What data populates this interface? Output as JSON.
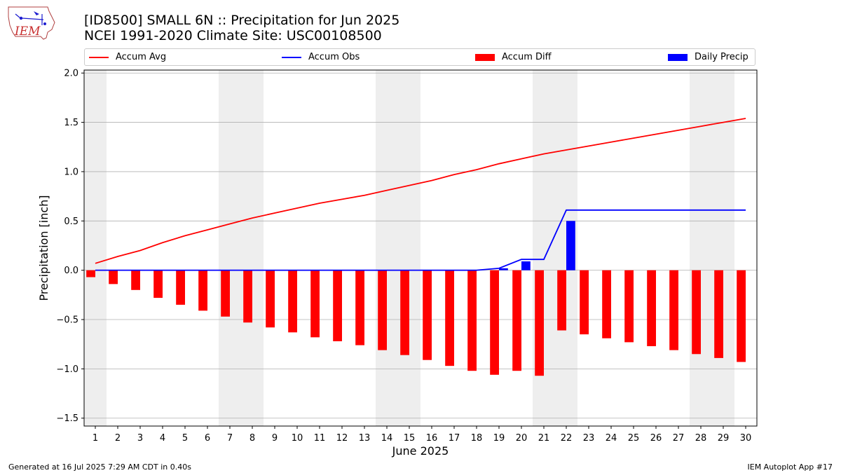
{
  "header": {
    "logo_text": "IEM",
    "title_line1": "[ID8500] SMALL 6N :: Precipitation for Jun 2025",
    "title_line2": "NCEI 1991-2020 Climate Site: USC00108500"
  },
  "legend": {
    "items": [
      {
        "label": "Accum Avg",
        "type": "line",
        "color": "#ff0000"
      },
      {
        "label": "Accum Obs",
        "type": "line",
        "color": "#0000ff"
      },
      {
        "label": "Accum Diff",
        "type": "bar",
        "color": "#ff0000"
      },
      {
        "label": "Daily Precip",
        "type": "bar",
        "color": "#0000ff"
      }
    ]
  },
  "footer": {
    "left": "Generated at 16 Jul 2025 7:29 AM CDT in 0.40s",
    "right": "IEM Autoplot App #17"
  },
  "chart_data": {
    "type": "bar",
    "xlabel": "June 2025",
    "ylabel": "Precipitation [inch]",
    "ylim": [
      -1.58,
      2.03
    ],
    "yticks": [
      -1.5,
      -1.0,
      -0.5,
      0.0,
      0.5,
      1.0,
      1.5,
      2.0
    ],
    "ytick_labels": [
      "−1.5",
      "−1.0",
      "−0.5",
      "0.0",
      "0.5",
      "1.0",
      "1.5",
      "2.0"
    ],
    "grid": "horizontal",
    "weekend_shading": [
      [
        1,
        1
      ],
      [
        7,
        8
      ],
      [
        14,
        15
      ],
      [
        21,
        22
      ],
      [
        28,
        29
      ]
    ],
    "x": [
      1,
      2,
      3,
      4,
      5,
      6,
      7,
      8,
      9,
      10,
      11,
      12,
      13,
      14,
      15,
      16,
      17,
      18,
      19,
      20,
      21,
      22,
      23,
      24,
      25,
      26,
      27,
      28,
      29,
      30
    ],
    "x_tick_labels": [
      "1",
      "2",
      "3",
      "4",
      "5",
      "6",
      "7",
      "8",
      "9",
      "10",
      "11",
      "12",
      "13",
      "14",
      "15",
      "16",
      "17",
      "18",
      "19",
      "20",
      "21",
      "22",
      "23",
      "24",
      "25",
      "26",
      "27",
      "28",
      "29",
      "30"
    ],
    "series": [
      {
        "name": "Accum Avg",
        "type": "line",
        "color": "#ff0000",
        "values": [
          0.07,
          0.14,
          0.2,
          0.28,
          0.35,
          0.41,
          0.47,
          0.53,
          0.58,
          0.63,
          0.68,
          0.72,
          0.76,
          0.81,
          0.86,
          0.91,
          0.97,
          1.02,
          1.08,
          1.13,
          1.18,
          1.22,
          1.26,
          1.3,
          1.34,
          1.38,
          1.42,
          1.46,
          1.5,
          1.54
        ]
      },
      {
        "name": "Accum Obs",
        "type": "line",
        "color": "#0000ff",
        "values": [
          0,
          0,
          0,
          0,
          0,
          0,
          0,
          0,
          0,
          0,
          0,
          0,
          0,
          0,
          0,
          0,
          0,
          0,
          0.02,
          0.11,
          0.11,
          0.61,
          0.61,
          0.61,
          0.61,
          0.61,
          0.61,
          0.61,
          0.61,
          0.61
        ]
      },
      {
        "name": "Accum Diff",
        "type": "bar",
        "color": "#ff0000",
        "values": [
          -0.07,
          -0.14,
          -0.2,
          -0.28,
          -0.35,
          -0.41,
          -0.47,
          -0.53,
          -0.58,
          -0.63,
          -0.68,
          -0.72,
          -0.76,
          -0.81,
          -0.86,
          -0.91,
          -0.97,
          -1.02,
          -1.06,
          -1.02,
          -1.07,
          -0.61,
          -0.65,
          -0.69,
          -0.73,
          -0.77,
          -0.81,
          -0.85,
          -0.89,
          -0.93
        ]
      },
      {
        "name": "Daily Precip",
        "type": "bar",
        "color": "#0000ff",
        "values": [
          0,
          0,
          0,
          0,
          0,
          0,
          0,
          0,
          0,
          0,
          0,
          0,
          0,
          0,
          0,
          0,
          0,
          0,
          0.02,
          0.09,
          0,
          0.5,
          0,
          0,
          0,
          0,
          0,
          0,
          0,
          0
        ]
      }
    ]
  }
}
